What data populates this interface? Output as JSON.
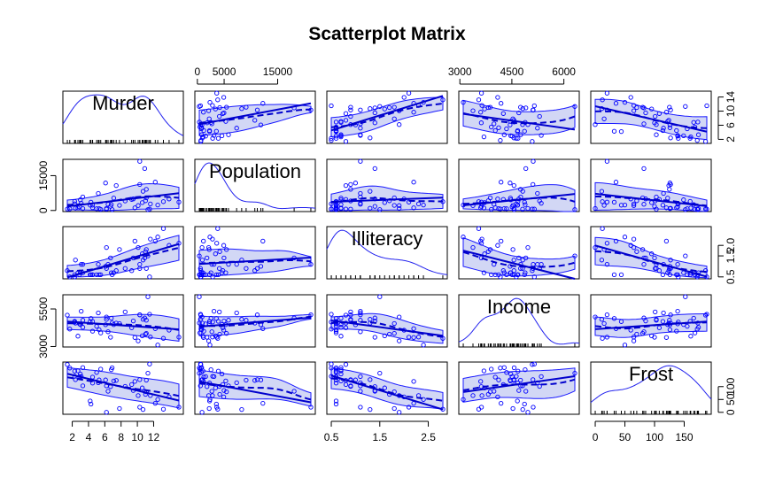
{
  "chart_data": {
    "type": "scatter",
    "title": "Scatterplot Matrix",
    "variables": [
      "Murder",
      "Population",
      "Illiteracy",
      "Income",
      "Frost"
    ],
    "colors": {
      "points": "#0000ff",
      "fit_line": "#0000cd",
      "band_fill": "#d2d7f5",
      "band_stroke": "#1a1aff",
      "density": "#2222ee",
      "axes": "#000000",
      "rug": "#000000"
    },
    "axes": {
      "Murder": {
        "range": [
          1.4,
          15.1
        ],
        "ticks": [
          "2",
          "4",
          "6",
          "8",
          "10",
          "12"
        ],
        "tick_values": [
          2,
          4,
          6,
          8,
          10,
          12
        ]
      },
      "Population": {
        "range": [
          365,
          21198
        ],
        "ticks": [
          "0",
          "5000",
          "15000"
        ],
        "tick_values": [
          0,
          5000,
          15000
        ]
      },
      "Illiteracy": {
        "range": [
          0.5,
          2.8
        ],
        "ticks": [
          "0.5",
          "1.5",
          "2.5"
        ],
        "tick_values": [
          0.5,
          1.5,
          2.5
        ]
      },
      "Income": {
        "range": [
          3098,
          6315
        ],
        "ticks": [
          "3000",
          "4500",
          "6000"
        ],
        "tick_values": [
          3000,
          4500,
          6000
        ]
      },
      "Frost": {
        "range": [
          0,
          188
        ],
        "ticks": [
          "0",
          "50",
          "100",
          "150"
        ],
        "tick_values": [
          0,
          50,
          100,
          150
        ]
      }
    },
    "outer_axes": {
      "bottom": [
        {
          "column": "Murder",
          "ticks": [
            "2",
            "4",
            "6",
            "8",
            "10",
            "12"
          ]
        },
        {
          "column": "Illiteracy",
          "ticks": [
            "0.5",
            "1.5",
            "2.5"
          ]
        },
        {
          "column": "Frost",
          "ticks": [
            "0",
            "50",
            "100",
            "150"
          ]
        }
      ],
      "top": [
        {
          "column": "Population",
          "ticks": [
            "0",
            "5000",
            "15000"
          ]
        },
        {
          "column": "Income",
          "ticks": [
            "3000",
            "4500",
            "6000"
          ]
        }
      ],
      "left": [
        {
          "row": "Population",
          "ticks": [
            "0",
            "15000"
          ]
        },
        {
          "row": "Income",
          "ticks": [
            "3000",
            "5500"
          ]
        }
      ],
      "right": [
        {
          "row": "Murder",
          "ticks": [
            "2",
            "6",
            "10",
            "14"
          ]
        },
        {
          "row": "Illiteracy",
          "ticks": [
            "0.5",
            "1.5",
            "2.0"
          ]
        },
        {
          "row": "Frost",
          "ticks": [
            "0",
            "50",
            "100"
          ]
        }
      ]
    },
    "data": {
      "Murder": [
        15.1,
        11.3,
        7.8,
        10.1,
        10.3,
        6.8,
        3.1,
        6.2,
        10.7,
        13.9,
        6.2,
        5.3,
        10.3,
        7.1,
        2.3,
        4.5,
        10.6,
        13.2,
        2.7,
        8.5,
        3.3,
        11.1,
        2.3,
        12.5,
        9.3,
        5.0,
        2.9,
        11.5,
        3.3,
        5.2,
        9.7,
        10.9,
        11.1,
        1.4,
        7.4,
        6.4,
        4.2,
        6.1,
        2.4,
        11.6,
        1.7,
        11.0,
        12.2,
        4.5,
        5.5,
        9.5,
        4.3,
        6.7,
        3.0,
        6.9
      ],
      "Population": [
        3615,
        365,
        2212,
        2110,
        21198,
        2541,
        3100,
        579,
        8277,
        4931,
        868,
        813,
        11197,
        5313,
        2861,
        2280,
        3387,
        3806,
        1058,
        4122,
        5814,
        9111,
        3921,
        2341,
        4767,
        746,
        1544,
        590,
        812,
        7333,
        1144,
        18076,
        5441,
        637,
        10735,
        2715,
        2284,
        11860,
        931,
        2816,
        681,
        4173,
        12237,
        1203,
        472,
        4981,
        3559,
        1799,
        4589,
        376
      ],
      "Illiteracy": [
        2.1,
        1.5,
        1.8,
        1.9,
        1.1,
        0.7,
        1.1,
        0.9,
        1.3,
        2.0,
        1.9,
        0.6,
        0.9,
        0.7,
        0.5,
        0.6,
        1.6,
        2.8,
        0.7,
        0.9,
        1.1,
        0.9,
        0.6,
        2.4,
        0.8,
        0.6,
        0.6,
        0.5,
        0.7,
        1.1,
        2.2,
        1.4,
        1.8,
        0.8,
        0.8,
        1.1,
        0.6,
        1.0,
        1.3,
        2.3,
        0.5,
        1.7,
        2.2,
        0.6,
        0.6,
        1.4,
        0.6,
        1.4,
        0.7,
        0.6
      ],
      "Income": [
        3624,
        6315,
        4530,
        3378,
        5114,
        4884,
        5348,
        4809,
        4815,
        4091,
        4963,
        4119,
        5107,
        4458,
        4628,
        4669,
        3712,
        3545,
        3694,
        5299,
        4755,
        4751,
        4675,
        3098,
        4254,
        4347,
        4508,
        5149,
        4281,
        5237,
        3601,
        4903,
        3875,
        5087,
        4561,
        3983,
        4660,
        4449,
        4558,
        3635,
        4167,
        3821,
        4188,
        4022,
        3907,
        4701,
        4864,
        3617,
        4468,
        4566
      ],
      "Frost": [
        20,
        152,
        15,
        65,
        20,
        166,
        139,
        103,
        11,
        60,
        0,
        126,
        127,
        122,
        140,
        114,
        95,
        12,
        161,
        101,
        103,
        125,
        160,
        50,
        108,
        155,
        139,
        188,
        174,
        115,
        120,
        82,
        80,
        186,
        124,
        82,
        44,
        126,
        127,
        65,
        172,
        70,
        35,
        137,
        168,
        85,
        32,
        100,
        149,
        173
      ]
    }
  }
}
